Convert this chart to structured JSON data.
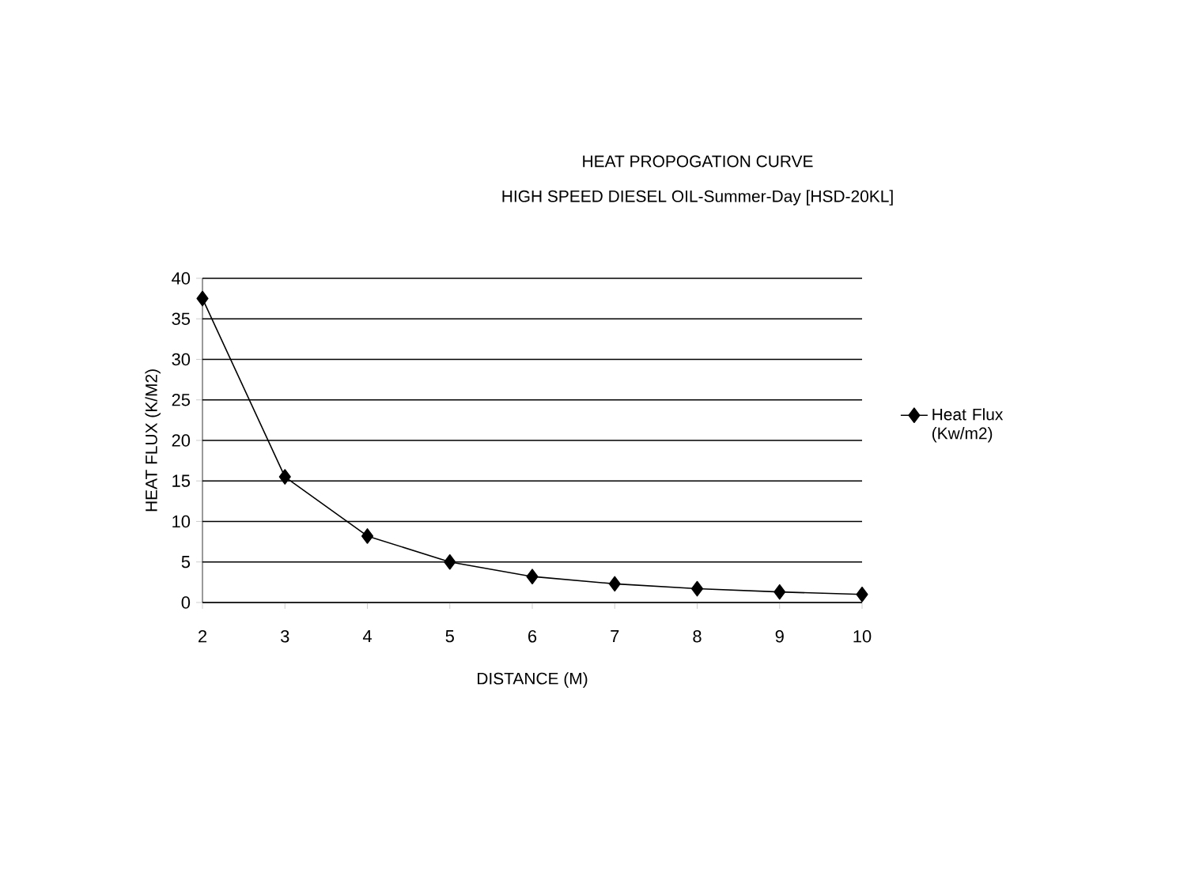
{
  "chart_data": {
    "type": "line",
    "title": "HEAT PROPOGATION CURVE",
    "subtitle": "HIGH SPEED DIESEL OIL-Summer-Day [HSD-20KL]",
    "xlabel": "DISTANCE (M)",
    "ylabel": "HEAT FLUX (K/M2)",
    "x": [
      2,
      3,
      4,
      5,
      6,
      7,
      8,
      9,
      10
    ],
    "series": [
      {
        "name": "Heat Flux (Kw/m2)",
        "color": "#000000",
        "values": [
          37.5,
          15.5,
          8.2,
          5.0,
          3.2,
          2.3,
          1.7,
          1.3,
          1.0
        ]
      }
    ],
    "xlim": [
      2,
      10
    ],
    "ylim": [
      0,
      40
    ],
    "xticks": [
      2,
      3,
      4,
      5,
      6,
      7,
      8,
      9,
      10
    ],
    "yticks": [
      0,
      5,
      10,
      15,
      20,
      25,
      30,
      35,
      40
    ],
    "grid": "y",
    "legend": "right",
    "marker": "diamond",
    "line_style": "solid"
  }
}
